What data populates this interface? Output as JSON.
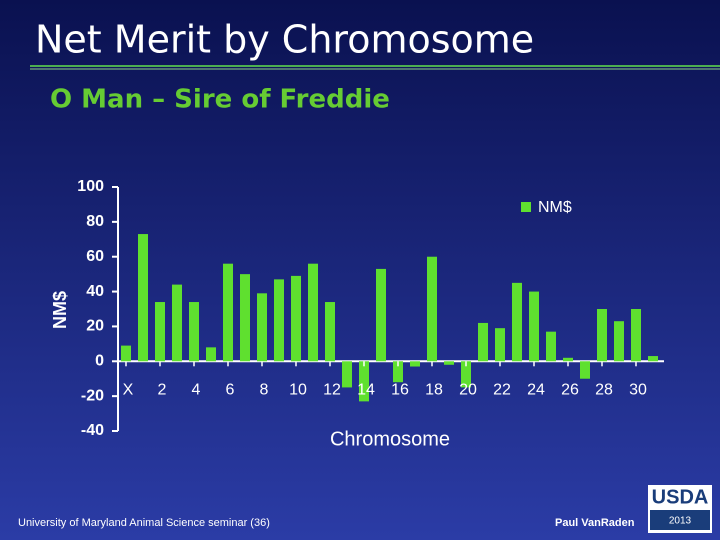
{
  "slide": {
    "title": "Net Merit by Chromosome",
    "subtitle": "O Man – Sire of Freddie",
    "footer": "University of Maryland Animal Science seminar (36)",
    "author": "Paul VanRaden",
    "logo": "USDA",
    "year": "2013"
  },
  "chart_data": {
    "type": "bar",
    "categories": [
      "X",
      null,
      "2",
      null,
      "4",
      null,
      "6",
      null,
      "8",
      null,
      "10",
      null,
      "12",
      null,
      "14",
      null,
      "16",
      null,
      "18",
      null,
      "20",
      null,
      "22",
      null,
      "24",
      null,
      "26",
      null,
      "28",
      null,
      "30",
      null
    ],
    "series": [
      {
        "name": "NM$",
        "color": "#5fe02f",
        "values": [
          9,
          73,
          34,
          44,
          34,
          8,
          56,
          50,
          39,
          47,
          49,
          56,
          34,
          -15,
          -23,
          53,
          -12,
          -3,
          60,
          -2,
          -15,
          22,
          19,
          45,
          40,
          17,
          2,
          -10,
          30,
          23,
          30,
          3
        ]
      }
    ],
    "xlabel": "Chromosome",
    "ylabel": "NM$",
    "ylim": [
      -40,
      100
    ],
    "yticks": [
      -40,
      -20,
      0,
      20,
      40,
      60,
      80,
      100
    ],
    "legend": "top-right"
  }
}
